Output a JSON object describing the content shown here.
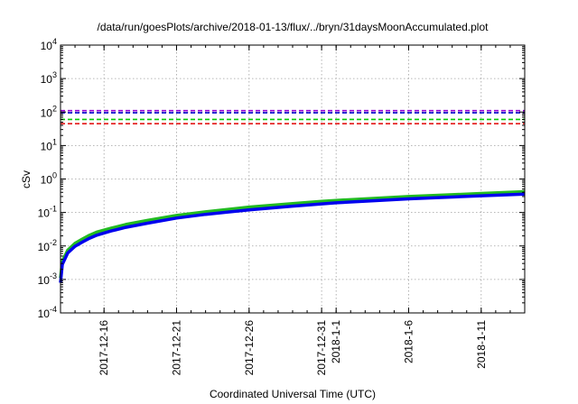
{
  "chart_data": {
    "type": "line",
    "title": "/data/run/goesPlots/archive/2018-01-13/flux/../bryn/31daysMoonAccumulated.plot",
    "xlabel": "Coordinated Universal Time (UTC)",
    "ylabel": "cSv",
    "y_scale": "log",
    "ylim": [
      0.0001,
      10000
    ],
    "xlim": [
      "2017-12-13",
      "2018-01-14"
    ],
    "grid": true,
    "y_ticks": [
      {
        "value": 0.0001,
        "base": "10",
        "exp": "-4"
      },
      {
        "value": 0.001,
        "base": "10",
        "exp": "-3"
      },
      {
        "value": 0.01,
        "base": "10",
        "exp": "-2"
      },
      {
        "value": 0.1,
        "base": "10",
        "exp": "-1"
      },
      {
        "value": 1,
        "base": "10",
        "exp": "0"
      },
      {
        "value": 10,
        "base": "10",
        "exp": "1"
      },
      {
        "value": 100,
        "base": "10",
        "exp": "2"
      },
      {
        "value": 1000,
        "base": "10",
        "exp": "3"
      },
      {
        "value": 10000,
        "base": "10",
        "exp": "4"
      }
    ],
    "x_ticks": [
      {
        "date": "2017-12-16",
        "label": "2017-12-16"
      },
      {
        "date": "2017-12-21",
        "label": "2017-12-21"
      },
      {
        "date": "2017-12-26",
        "label": "2017-12-26"
      },
      {
        "date": "2017-12-31",
        "label": "2017-12-31"
      },
      {
        "date": "2018-01-01",
        "label": "2018-1-1"
      },
      {
        "date": "2018-01-06",
        "label": "2018-1-6"
      },
      {
        "date": "2018-01-11",
        "label": "2018-1-11"
      }
    ],
    "reference_lines": [
      {
        "value": 110,
        "color": "#9400d3"
      },
      {
        "value": 95,
        "color": "#0000cd"
      },
      {
        "value": 60,
        "color": "#00cc00"
      },
      {
        "value": 45,
        "color": "#e00000"
      }
    ],
    "series": [
      {
        "color": "#22bb22",
        "width": 3.5,
        "x": [
          "2017-12-13 00:00",
          "2017-12-13 03:00",
          "2017-12-13 12:00",
          "2017-12-14 00:00",
          "2017-12-14 12:00",
          "2017-12-15 00:00",
          "2017-12-15 12:00",
          "2017-12-16 12:00",
          "2017-12-17 12:00",
          "2017-12-19 00:00",
          "2017-12-21 00:00",
          "2017-12-23 00:00",
          "2017-12-26 00:00",
          "2017-12-29 00:00",
          "2017-12-31 00:00",
          "2018-01-01 00:00",
          "2018-01-04 00:00",
          "2018-01-06 00:00",
          "2018-01-09 00:00",
          "2018-01-11 00:00",
          "2018-01-14 00:00"
        ],
        "y": [
          0.0011,
          0.0035,
          0.0075,
          0.012,
          0.016,
          0.021,
          0.026,
          0.034,
          0.044,
          0.058,
          0.082,
          0.105,
          0.145,
          0.185,
          0.215,
          0.23,
          0.27,
          0.3,
          0.34,
          0.37,
          0.42
        ]
      },
      {
        "color": "#0000ee",
        "width": 3.5,
        "x": [
          "2017-12-13 00:00",
          "2017-12-13 03:00",
          "2017-12-13 12:00",
          "2017-12-14 00:00",
          "2017-12-14 12:00",
          "2017-12-15 00:00",
          "2017-12-15 12:00",
          "2017-12-16 12:00",
          "2017-12-17 12:00",
          "2017-12-19 00:00",
          "2017-12-21 00:00",
          "2017-12-23 00:00",
          "2017-12-26 00:00",
          "2017-12-29 00:00",
          "2017-12-31 00:00",
          "2018-01-01 00:00",
          "2018-01-04 00:00",
          "2018-01-06 00:00",
          "2018-01-09 00:00",
          "2018-01-11 00:00",
          "2018-01-14 00:00"
        ],
        "y": [
          0.0008,
          0.0028,
          0.0062,
          0.0098,
          0.013,
          0.017,
          0.021,
          0.028,
          0.036,
          0.048,
          0.068,
          0.088,
          0.12,
          0.155,
          0.18,
          0.195,
          0.23,
          0.255,
          0.29,
          0.315,
          0.355
        ]
      }
    ]
  }
}
